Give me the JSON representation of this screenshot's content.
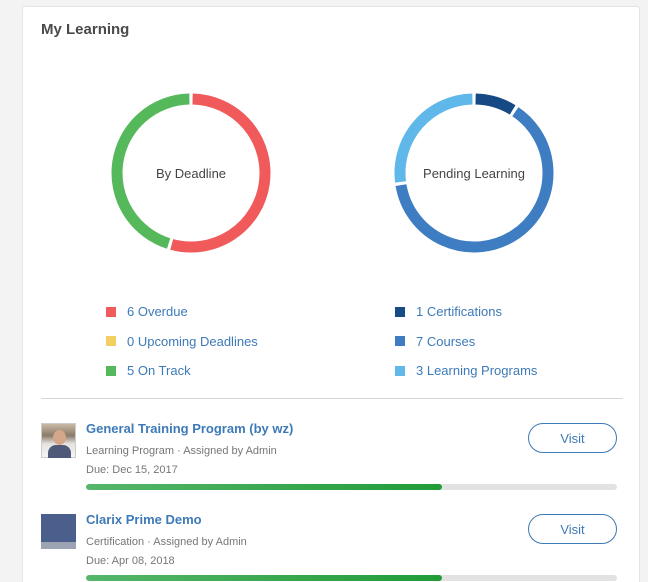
{
  "card": {
    "title": "My Learning"
  },
  "charts": {
    "deadline": {
      "label": "By Deadline",
      "segments": [
        {
          "name": "overdue",
          "value": 6,
          "color": "#f05a5a"
        },
        {
          "name": "upcoming",
          "value": 0,
          "color": "#f2cf62"
        },
        {
          "name": "on-track",
          "value": 5,
          "color": "#55b85a"
        }
      ]
    },
    "pending": {
      "label": "Pending Learning",
      "segments": [
        {
          "name": "certifications",
          "value": 1,
          "color": "#154a84"
        },
        {
          "name": "courses",
          "value": 7,
          "color": "#3f7dc3"
        },
        {
          "name": "learning-programs",
          "value": 3,
          "color": "#5fb7ea"
        }
      ]
    }
  },
  "legend_left": [
    {
      "label": "6 Overdue",
      "color": "#f05a5a"
    },
    {
      "label": "0 Upcoming Deadlines",
      "color": "#f2cf62"
    },
    {
      "label": "5 On Track",
      "color": "#55b85a"
    }
  ],
  "legend_right": [
    {
      "label": "1 Certifications",
      "color": "#154a84"
    },
    {
      "label": "7 Courses",
      "color": "#3f7dc3"
    },
    {
      "label": "3 Learning Programs",
      "color": "#5fb7ea"
    }
  ],
  "items": [
    {
      "title": "General Training Program (by wz)",
      "subtitle": "Learning Program · Assigned by Admin",
      "due": "Due: Dec 15, 2017",
      "button": "Visit",
      "progress": 0.67,
      "thumb": "photo"
    },
    {
      "title": "Clarix Prime Demo",
      "subtitle": "Certification · Assigned by Admin",
      "due": "Due: Apr 08, 2018",
      "button": "Visit",
      "progress": 0.67,
      "thumb": "block"
    }
  ]
}
